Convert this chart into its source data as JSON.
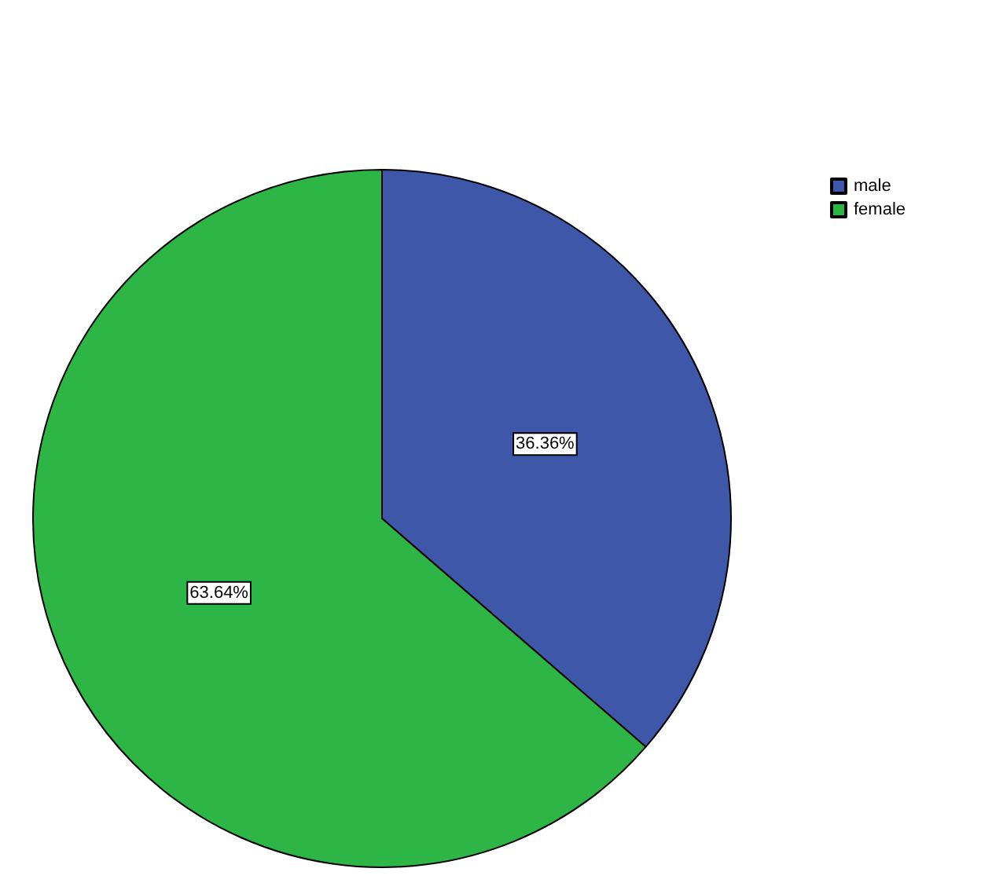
{
  "chart_data": {
    "type": "pie",
    "categories": [
      "male",
      "female"
    ],
    "values": [
      36.36,
      63.64
    ],
    "colors": [
      "#3f57a8",
      "#2db545"
    ],
    "value_labels": [
      "36.36%",
      "63.64%"
    ],
    "legend": "top right"
  }
}
